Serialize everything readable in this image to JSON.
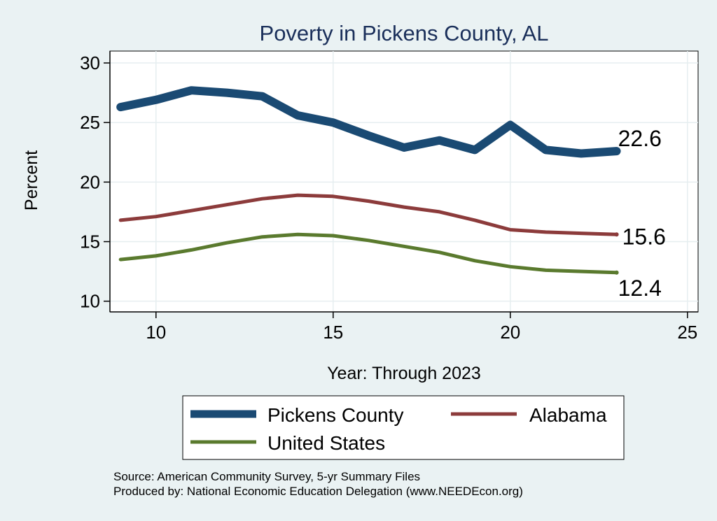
{
  "chart_data": {
    "type": "line",
    "title": "Poverty in Pickens County, AL",
    "xlabel": "Year: Through 2023",
    "ylabel": "Percent",
    "xlim": [
      8.7,
      25.3
    ],
    "ylim": [
      9.1,
      31.0
    ],
    "xticks": [
      10,
      15,
      20,
      25
    ],
    "yticks": [
      10,
      15,
      20,
      25,
      30
    ],
    "grid": true,
    "legend_position": "bottom",
    "x": [
      9,
      10,
      11,
      12,
      13,
      14,
      15,
      16,
      17,
      18,
      19,
      20,
      21,
      22,
      23
    ],
    "series": [
      {
        "name": "Pickens County",
        "color": "#1a4a73",
        "width": 12,
        "values": [
          26.3,
          26.9,
          27.7,
          27.5,
          27.2,
          25.6,
          25.0,
          23.9,
          22.9,
          23.5,
          22.7,
          24.8,
          22.7,
          22.4,
          22.6
        ],
        "end_label": "22.6"
      },
      {
        "name": "Alabama",
        "color": "#8c3b3b",
        "width": 5,
        "values": [
          16.8,
          17.1,
          17.6,
          18.1,
          18.6,
          18.9,
          18.8,
          18.4,
          17.9,
          17.5,
          16.8,
          16.0,
          15.8,
          15.7,
          15.6
        ],
        "end_label": "15.6"
      },
      {
        "name": "United States",
        "color": "#5a7a2e",
        "width": 5,
        "values": [
          13.5,
          13.8,
          14.3,
          14.9,
          15.4,
          15.6,
          15.5,
          15.1,
          14.6,
          14.1,
          13.4,
          12.9,
          12.6,
          12.5,
          12.4
        ],
        "end_label": "12.4"
      }
    ]
  },
  "source": {
    "line1": "Source: American Community Survey, 5-yr Summary Files",
    "line2": "Produced by: National Economic Education Delegation (www.NEEDEcon.org)"
  }
}
